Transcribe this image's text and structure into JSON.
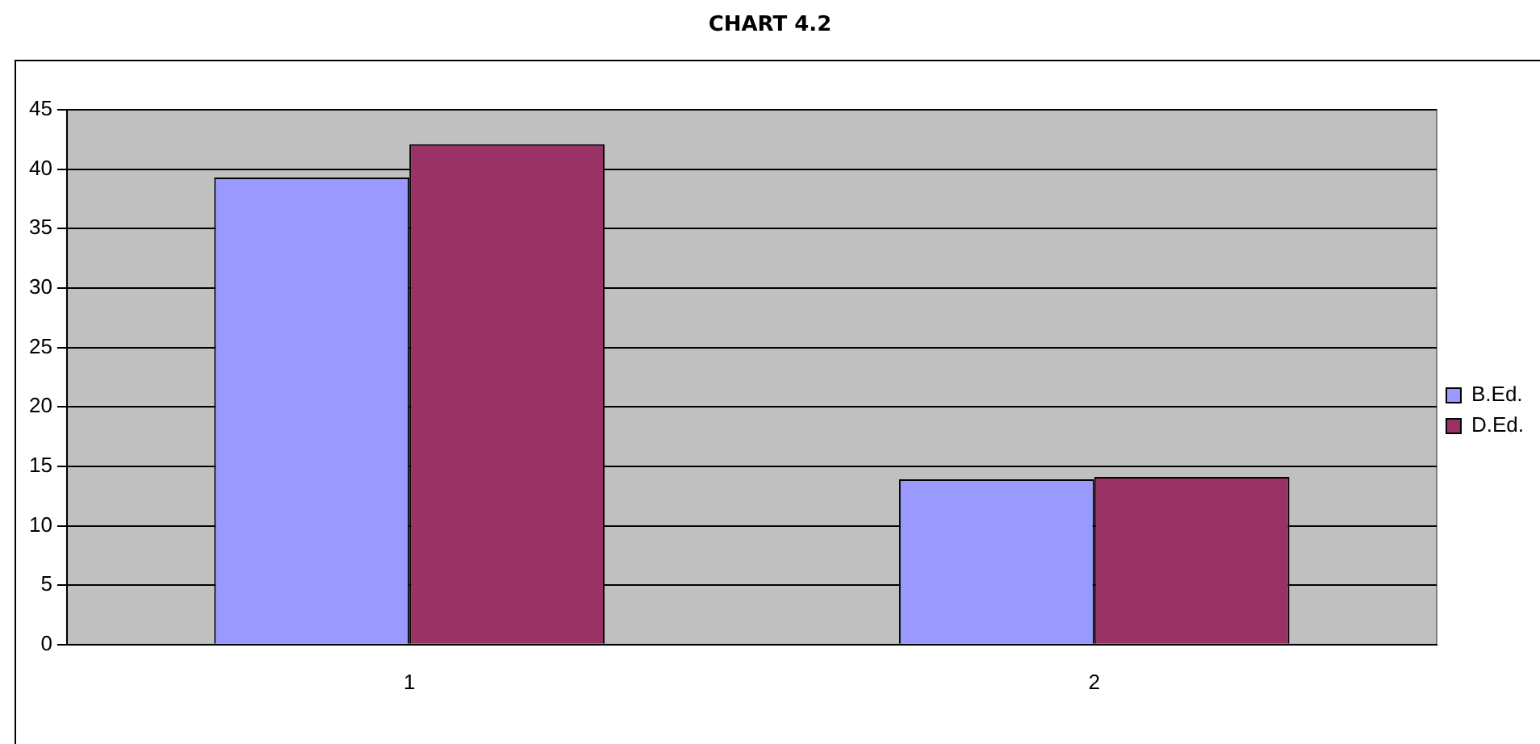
{
  "chart_data": {
    "type": "bar",
    "title": "CHART 4.2",
    "categories": [
      "1",
      "2"
    ],
    "series": [
      {
        "name": "B.Ed.",
        "color": "#9999ff",
        "values": [
          39.3,
          13.9
        ]
      },
      {
        "name": "D.Ed.",
        "color": "#993366",
        "values": [
          42.1,
          14.1
        ]
      }
    ],
    "ylim": [
      0,
      45
    ],
    "yticks": [
      0,
      5,
      10,
      15,
      20,
      25,
      30,
      35,
      40,
      45
    ],
    "grid": "y",
    "legend": "right"
  }
}
